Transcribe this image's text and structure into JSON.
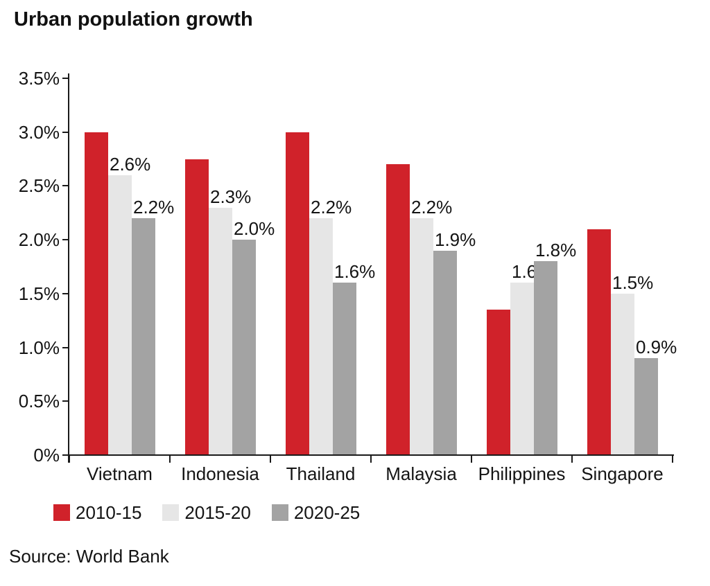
{
  "chart_data": {
    "type": "bar",
    "title": "Urban population growth",
    "source": "Source: World Bank",
    "categories": [
      "Vietnam",
      "Indonesia",
      "Thailand",
      "Malaysia",
      "Philippines",
      "Singapore"
    ],
    "series": [
      {
        "name": "2010-15",
        "color": "#d0222a",
        "values": [
          3.0,
          2.75,
          3.0,
          2.7,
          1.35,
          2.1
        ],
        "labels": [
          "",
          "",
          "",
          "",
          "",
          ""
        ]
      },
      {
        "name": "2015-20",
        "color": "#e6e6e6",
        "values": [
          2.6,
          2.3,
          2.2,
          2.2,
          1.6,
          1.5
        ],
        "labels": [
          "2.6%",
          "2.3%",
          "2.2%",
          "2.2%",
          "1.6%",
          "1.5%"
        ]
      },
      {
        "name": "2020-25",
        "color": "#a3a3a3",
        "values": [
          2.2,
          2.0,
          1.6,
          1.9,
          1.8,
          0.9
        ],
        "labels": [
          "2.2%",
          "2.0%",
          "1.6%",
          "1.9%",
          "1.8%",
          "0.9%"
        ]
      }
    ],
    "ylim": [
      0,
      3.5
    ],
    "ytick_values": [
      3.5,
      3.0,
      2.5,
      2.0,
      1.5,
      1.0,
      0.5,
      0
    ],
    "ytick_labels": [
      "3.5%",
      "3.0%",
      "2.5%",
      "2.0%",
      "1.5%",
      "1.0%",
      "0.5%",
      "0%"
    ],
    "xlabel": "",
    "ylabel": "",
    "grid": false,
    "legend_position": "bottom",
    "axis_color": "#1a1a1a",
    "text_color": "#141414"
  }
}
